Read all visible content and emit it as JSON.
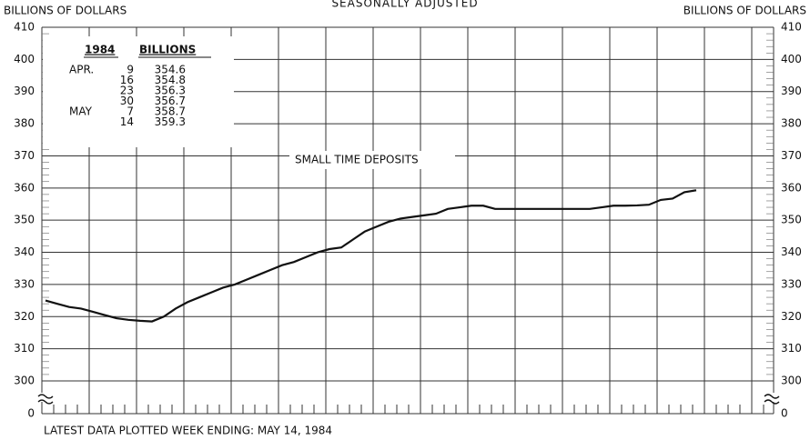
{
  "chart_data": {
    "type": "line",
    "title": "SEASONALLY ADJUSTED",
    "y_label": "BILLIONS OF DOLLARS",
    "y2_label": "BILLIONS OF DOLLARS",
    "annotation": "SMALL TIME DEPOSITS",
    "footnote": "LATEST DATA PLOTTED WEEK ENDING: MAY 14, 1984",
    "categories": [
      null,
      null,
      null,
      null,
      null,
      null,
      null,
      null,
      null,
      null,
      null,
      null,
      null,
      null,
      null,
      null,
      null,
      null,
      null,
      null,
      null,
      null,
      null,
      null,
      null,
      null,
      null,
      null,
      null,
      null,
      null,
      null,
      null,
      null,
      null,
      null,
      null,
      null,
      null,
      null,
      null,
      null,
      null,
      null,
      null,
      null,
      null,
      null,
      null,
      null,
      null,
      null,
      null,
      null,
      null,
      null
    ],
    "series": [
      {
        "name": "SMALL TIME DEPOSITS",
        "color": "#111111",
        "values": [
          325,
          324,
          323,
          322.5,
          321.5,
          320.5,
          319.5,
          319,
          318.7,
          318.5,
          320,
          322.5,
          324.5,
          326,
          327.5,
          329,
          330,
          331.5,
          333,
          334.5,
          336,
          337,
          338.5,
          340,
          341,
          341.5,
          344,
          346.5,
          348,
          349.5,
          350.5,
          351,
          351.5,
          352,
          353.5,
          354,
          354.5,
          354.5,
          353.5,
          353.5,
          353.5,
          353.5,
          353.5,
          353.5,
          353.5,
          353.5,
          353.5,
          354,
          354.5,
          354.5,
          354.6,
          354.8,
          356.3,
          356.7,
          358.7,
          359.3
        ]
      }
    ],
    "ylim": [
      300,
      410
    ],
    "yticks": [
      0,
      300,
      310,
      320,
      330,
      340,
      350,
      360,
      370,
      380,
      390,
      400,
      410
    ],
    "axis_break": true,
    "grid": true,
    "table": {
      "header": [
        "1984",
        "BILLIONS"
      ],
      "rows": [
        [
          "APR.",
          9,
          354.6
        ],
        [
          null,
          16,
          354.8
        ],
        [
          null,
          23,
          356.3
        ],
        [
          null,
          30,
          356.7
        ],
        [
          "MAY",
          7,
          358.7
        ],
        [
          null,
          14,
          359.3
        ]
      ]
    }
  }
}
